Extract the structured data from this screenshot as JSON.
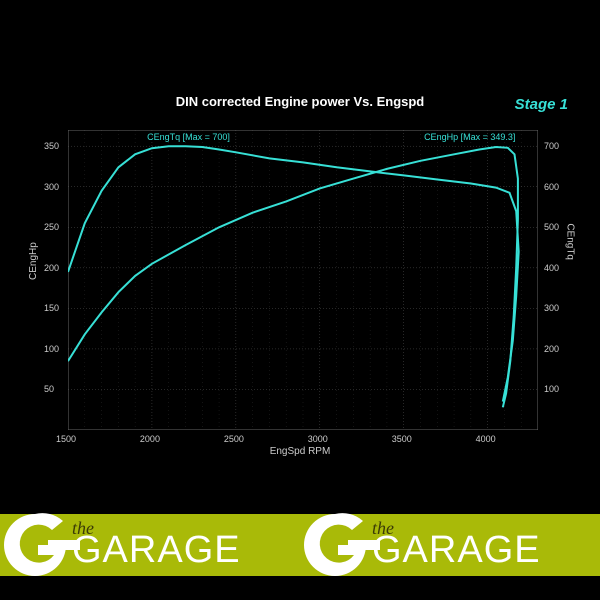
{
  "chart": {
    "type": "line",
    "title": "DIN corrected Engine power Vs. Engspd",
    "stage_label": "Stage 1",
    "background_color": "#000000",
    "grid_color": "#666666",
    "grid_major_color": "#999999",
    "axis_color": "#666666",
    "line_color": "#37e0d6",
    "line_width": 2,
    "text_color": "#cccccc",
    "title_color": "#ffffff",
    "stage_color": "#37e0d6",
    "title_fontsize": 13,
    "label_fontsize": 10,
    "tick_fontsize": 9,
    "x_axis": {
      "label": "EngSpd RPM",
      "min": 1500,
      "max": 4300,
      "ticks": [
        1500,
        2000,
        2500,
        3000,
        3500,
        4000
      ]
    },
    "y_left": {
      "label": "CEngHp",
      "min": 0,
      "max": 370,
      "ticks": [
        50,
        100,
        150,
        200,
        250,
        300,
        350
      ]
    },
    "y_right": {
      "label": "CEngTq",
      "min": 0,
      "max": 740,
      "ticks": [
        100,
        200,
        300,
        400,
        500,
        600,
        700
      ]
    },
    "series": [
      {
        "name": "CEngTq",
        "label": "CEngTq [Max = 700]",
        "axis": "right",
        "data": [
          [
            1500,
            390
          ],
          [
            1600,
            510
          ],
          [
            1700,
            590
          ],
          [
            1800,
            648
          ],
          [
            1900,
            680
          ],
          [
            2000,
            695
          ],
          [
            2100,
            700
          ],
          [
            2200,
            700
          ],
          [
            2300,
            698
          ],
          [
            2400,
            692
          ],
          [
            2500,
            685
          ],
          [
            2700,
            670
          ],
          [
            2900,
            660
          ],
          [
            3100,
            648
          ],
          [
            3300,
            638
          ],
          [
            3500,
            628
          ],
          [
            3700,
            618
          ],
          [
            3900,
            608
          ],
          [
            4050,
            598
          ],
          [
            4130,
            585
          ],
          [
            4170,
            540
          ],
          [
            4185,
            440
          ],
          [
            4170,
            330
          ],
          [
            4150,
            220
          ],
          [
            4120,
            130
          ],
          [
            4090,
            70
          ]
        ]
      },
      {
        "name": "CEngHp",
        "label": "CEngHp [Max = 349.3]",
        "axis": "left",
        "data": [
          [
            1500,
            85
          ],
          [
            1600,
            118
          ],
          [
            1700,
            145
          ],
          [
            1800,
            170
          ],
          [
            1900,
            190
          ],
          [
            2000,
            205
          ],
          [
            2200,
            228
          ],
          [
            2400,
            250
          ],
          [
            2600,
            268
          ],
          [
            2800,
            282
          ],
          [
            3000,
            298
          ],
          [
            3200,
            310
          ],
          [
            3400,
            322
          ],
          [
            3600,
            332
          ],
          [
            3800,
            340
          ],
          [
            3950,
            346
          ],
          [
            4050,
            349
          ],
          [
            4120,
            348
          ],
          [
            4160,
            340
          ],
          [
            4180,
            310
          ],
          [
            4180,
            260
          ],
          [
            4170,
            200
          ],
          [
            4155,
            140
          ],
          [
            4135,
            85
          ],
          [
            4110,
            45
          ],
          [
            4090,
            28
          ]
        ]
      }
    ]
  },
  "footer": {
    "background_color": "#a9ba08",
    "logo_the": "the",
    "logo_garage": "GARAGE",
    "logo_g_color": "#ffffff",
    "logo_text_color_the": "#3b3b08",
    "logo_text_color_garage": "#ffffff"
  }
}
